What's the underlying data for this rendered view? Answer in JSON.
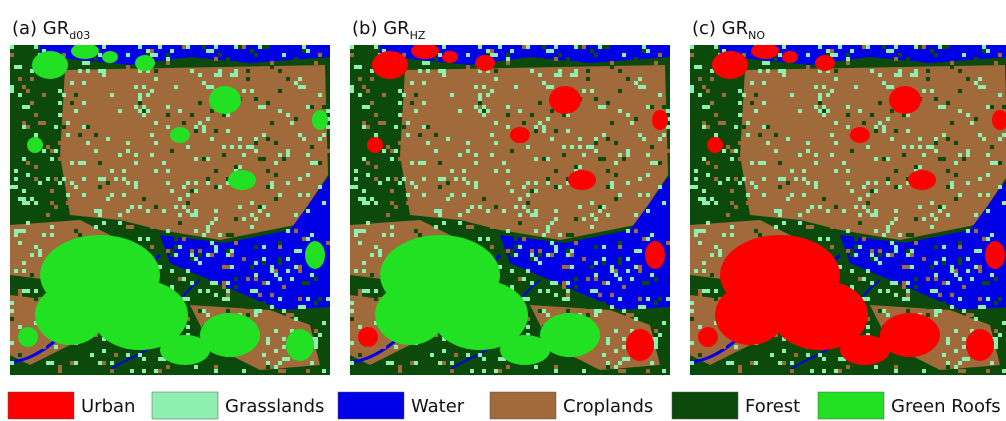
{
  "panels": [
    {
      "label": "(a) GR",
      "subscript": "d03"
    },
    {
      "label": "(b) GR",
      "subscript": "HZ"
    },
    {
      "label": "(c) GR",
      "subscript": "NO"
    }
  ],
  "legend": [
    {
      "label": "Urban",
      "color": "#ff0000"
    },
    {
      "label": "Grasslands",
      "color": "#8ef0b0"
    },
    {
      "label": "Water",
      "color": "#0000e6"
    },
    {
      "label": "Croplands",
      "color": "#a06a3a"
    },
    {
      "label": "Forest",
      "color": "#0b4a0b"
    },
    {
      "label": "Green Roofs",
      "color": "#22e022"
    }
  ]
}
